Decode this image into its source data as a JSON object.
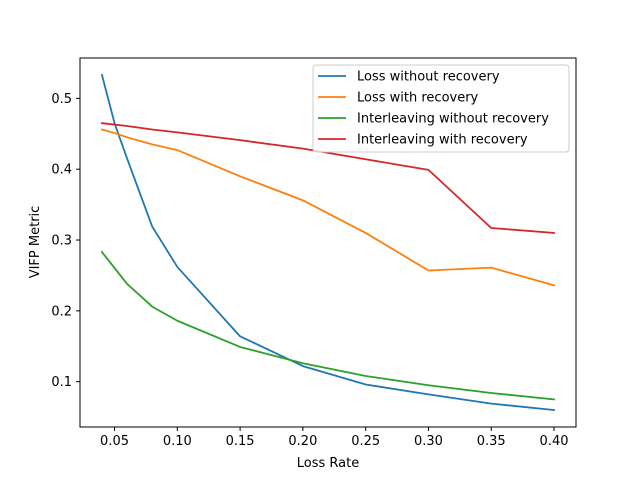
{
  "chart_data": {
    "type": "line",
    "title": "",
    "xlabel": "Loss Rate",
    "ylabel": "VIFP Metric",
    "xlim": [
      0.0225,
      0.4175
    ],
    "ylim": [
      0.036,
      0.557
    ],
    "xticks": [
      0.05,
      0.1,
      0.15,
      0.2,
      0.25,
      0.3,
      0.35,
      0.4
    ],
    "xtick_labels": [
      "0.05",
      "0.10",
      "0.15",
      "0.20",
      "0.25",
      "0.30",
      "0.35",
      "0.40"
    ],
    "yticks": [
      0.1,
      0.2,
      0.3,
      0.4,
      0.5
    ],
    "ytick_labels": [
      "0.1",
      "0.2",
      "0.3",
      "0.4",
      "0.5"
    ],
    "grid": false,
    "legend_position": "top-right",
    "series": [
      {
        "name": "Loss without recovery",
        "color": "#1f77b4",
        "x": [
          0.04,
          0.05,
          0.06,
          0.08,
          0.1,
          0.15,
          0.2,
          0.25,
          0.3,
          0.35,
          0.4
        ],
        "y": [
          0.533,
          0.465,
          0.415,
          0.319,
          0.262,
          0.164,
          0.122,
          0.096,
          0.082,
          0.069,
          0.06
        ]
      },
      {
        "name": "Loss with recovery",
        "color": "#ff7f0e",
        "x": [
          0.04,
          0.05,
          0.06,
          0.08,
          0.1,
          0.15,
          0.2,
          0.25,
          0.3,
          0.35,
          0.4
        ],
        "y": [
          0.456,
          0.451,
          0.445,
          0.435,
          0.427,
          0.39,
          0.356,
          0.31,
          0.257,
          0.261,
          0.236
        ]
      },
      {
        "name": "Interleaving without recovery",
        "color": "#2ca02c",
        "x": [
          0.04,
          0.06,
          0.08,
          0.1,
          0.15,
          0.2,
          0.25,
          0.3,
          0.35,
          0.4
        ],
        "y": [
          0.283,
          0.238,
          0.206,
          0.186,
          0.149,
          0.126,
          0.108,
          0.095,
          0.084,
          0.075
        ]
      },
      {
        "name": "Interleaving with recovery",
        "color": "#d62728",
        "x": [
          0.04,
          0.06,
          0.08,
          0.1,
          0.15,
          0.2,
          0.25,
          0.3,
          0.35,
          0.4
        ],
        "y": [
          0.465,
          0.461,
          0.456,
          0.452,
          0.441,
          0.429,
          0.414,
          0.399,
          0.317,
          0.31
        ]
      }
    ]
  }
}
